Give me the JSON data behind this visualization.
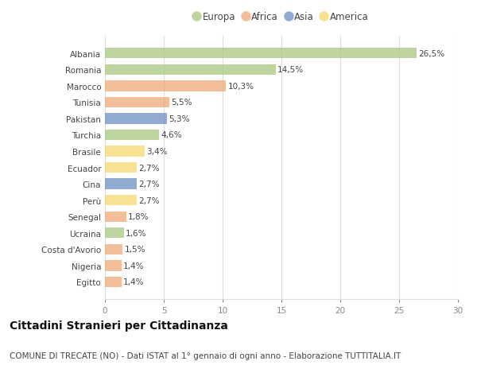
{
  "categories": [
    "Albania",
    "Romania",
    "Marocco",
    "Tunisia",
    "Pakistan",
    "Turchia",
    "Brasile",
    "Ecuador",
    "Cina",
    "Perù",
    "Senegal",
    "Ucraina",
    "Costa d'Avorio",
    "Nigeria",
    "Egitto"
  ],
  "values": [
    26.5,
    14.5,
    10.3,
    5.5,
    5.3,
    4.6,
    3.4,
    2.7,
    2.7,
    2.7,
    1.8,
    1.6,
    1.5,
    1.4,
    1.4
  ],
  "labels": [
    "26,5%",
    "14,5%",
    "10,3%",
    "5,5%",
    "5,3%",
    "4,6%",
    "3,4%",
    "2,7%",
    "2,7%",
    "2,7%",
    "1,8%",
    "1,6%",
    "1,5%",
    "1,4%",
    "1,4%"
  ],
  "colors": [
    "#a8c880",
    "#a8c880",
    "#f0a878",
    "#f0a878",
    "#6e8fc4",
    "#a8c880",
    "#f8d870",
    "#f8d870",
    "#6e8fc4",
    "#f8d870",
    "#f0a878",
    "#a8c880",
    "#f0a878",
    "#f0a878",
    "#f0a878"
  ],
  "continent_colors": {
    "Europa": "#a8c880",
    "Africa": "#f0a878",
    "Asia": "#6e8fc4",
    "America": "#f8d870"
  },
  "legend_labels": [
    "Europa",
    "Africa",
    "Asia",
    "America"
  ],
  "title": "Cittadini Stranieri per Cittadinanza",
  "subtitle": "COMUNE DI TRECATE (NO) - Dati ISTAT al 1° gennaio di ogni anno - Elaborazione TUTTITALIA.IT",
  "xlim": [
    0,
    30
  ],
  "xticks": [
    0,
    5,
    10,
    15,
    20,
    25,
    30
  ],
  "background_color": "#ffffff",
  "grid_color": "#dddddd",
  "bar_alpha": 0.75,
  "title_fontsize": 10,
  "subtitle_fontsize": 7.5,
  "label_fontsize": 7.5,
  "tick_fontsize": 7.5,
  "legend_fontsize": 8.5
}
